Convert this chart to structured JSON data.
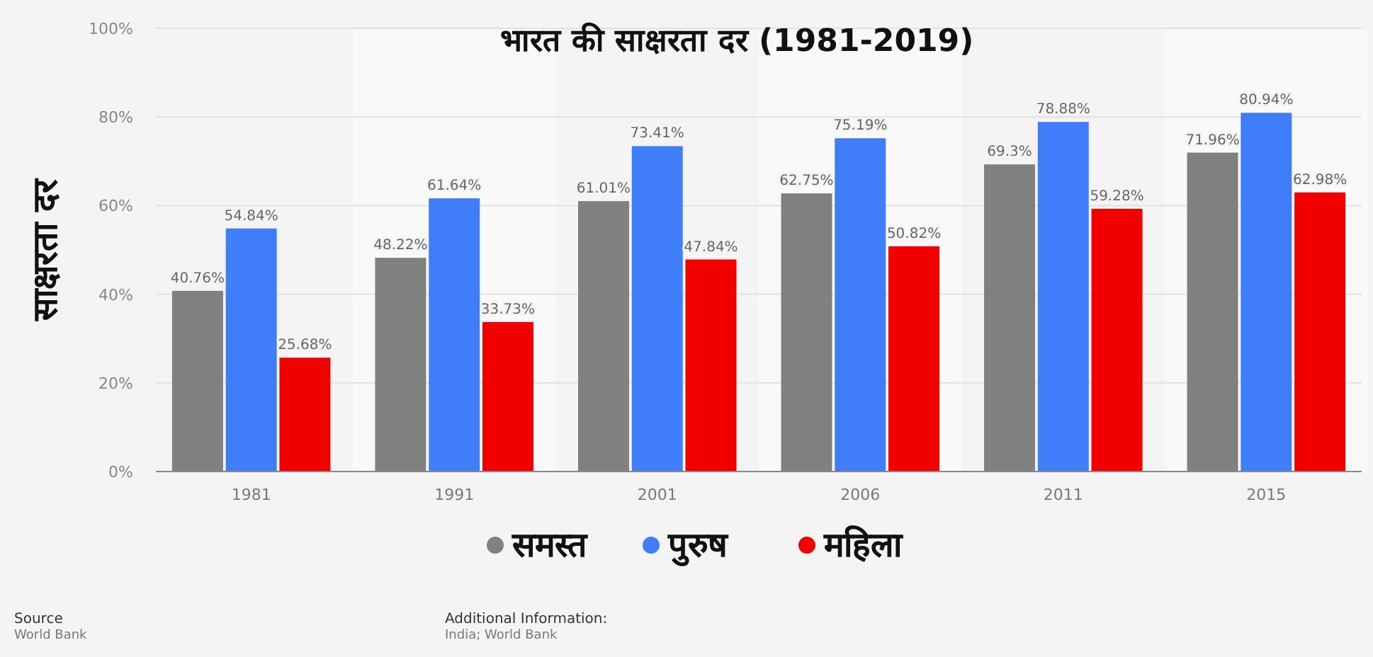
{
  "chart_data": {
    "type": "bar",
    "title": "भारत की साक्षरता दर (1981-2019)",
    "ylabel": "साक्षरता दर",
    "categories": [
      "1981",
      "1991",
      "2001",
      "2006",
      "2011",
      "2015"
    ],
    "series": [
      {
        "name": "समस्त",
        "color": "#808080",
        "values": [
          40.76,
          48.22,
          61.01,
          62.75,
          69.3,
          71.96
        ],
        "value_labels": [
          "40.76%",
          "48.22%",
          "61.01%",
          "62.75%",
          "69.3%",
          "71.96%"
        ]
      },
      {
        "name": "पुरुष",
        "color": "#3f7ef8",
        "values": [
          54.84,
          61.64,
          73.41,
          75.19,
          78.88,
          80.94
        ],
        "value_labels": [
          "54.84%",
          "61.64%",
          "73.41%",
          "75.19%",
          "78.88%",
          "80.94%"
        ]
      },
      {
        "name": "महिला",
        "color": "#f20000",
        "values": [
          25.68,
          33.73,
          47.84,
          50.82,
          59.28,
          62.98
        ],
        "value_labels": [
          "25.68%",
          "33.73%",
          "47.84%",
          "50.82%",
          "59.28%",
          "62.98%"
        ]
      }
    ],
    "ylim": [
      0,
      100
    ],
    "yticks": [
      {
        "value": 0,
        "label": "0%"
      },
      {
        "value": 20,
        "label": "20%"
      },
      {
        "value": 40,
        "label": "40%"
      },
      {
        "value": 60,
        "label": "60%"
      },
      {
        "value": 80,
        "label": "80%"
      },
      {
        "value": 100,
        "label": "100%"
      }
    ],
    "grid": "y",
    "legend": "bottom",
    "annotations": [
      "Source",
      "World Bank",
      "Additional Information:",
      "India; World Bank"
    ]
  }
}
